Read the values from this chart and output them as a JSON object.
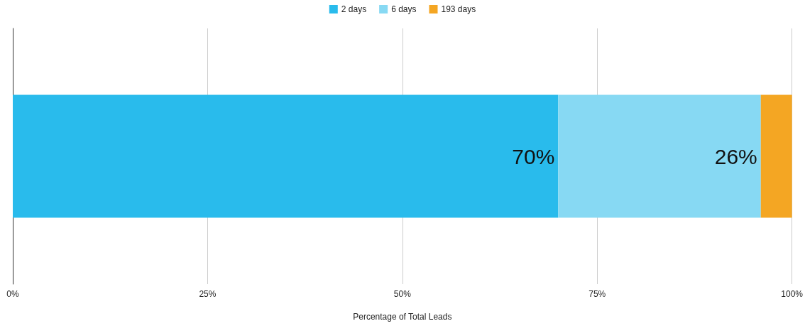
{
  "chart_data": {
    "type": "bar",
    "orientation": "horizontal",
    "stacked": true,
    "categories": [
      null
    ],
    "xlabel": "Percentage of Total Leads",
    "series": [
      {
        "name": "2 days",
        "color": "#29bbec",
        "values": [
          70
        ],
        "value_labels": [
          "70%"
        ]
      },
      {
        "name": "6 days",
        "color": "#87d9f3",
        "values": [
          26
        ],
        "value_labels": [
          "26%"
        ]
      },
      {
        "name": "193 days",
        "color": "#f4a623",
        "values": [
          4
        ],
        "value_labels": [
          null
        ]
      }
    ],
    "xlim": [
      0,
      100
    ],
    "xticks": [
      {
        "value": 0,
        "label": "0%"
      },
      {
        "value": 25,
        "label": "25%"
      },
      {
        "value": 50,
        "label": "50%"
      },
      {
        "value": 75,
        "label": "75%"
      },
      {
        "value": 100,
        "label": "100%"
      }
    ],
    "grid": "x",
    "legend": "top"
  }
}
